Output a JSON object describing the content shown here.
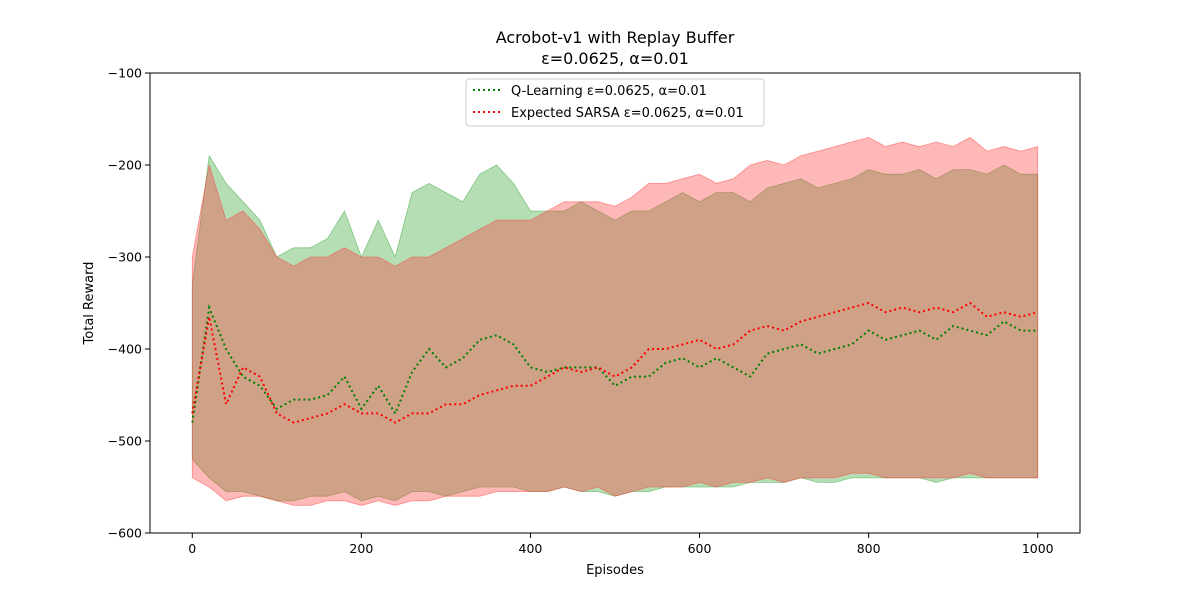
{
  "chart_data": {
    "type": "line",
    "title": "Acrobot-v1 with Replay Buffer",
    "subtitle": "ε=0.0625, α=0.01",
    "xlabel": "Episodes",
    "ylabel": "Total Reward",
    "xlim": [
      -50,
      1050
    ],
    "ylim": [
      -600,
      -100
    ],
    "xticks": [
      0,
      200,
      400,
      600,
      800,
      1000
    ],
    "yticks": [
      -600,
      -500,
      -400,
      -300,
      -200,
      -100
    ],
    "xtick_labels": [
      "0",
      "200",
      "400",
      "600",
      "800",
      "1000"
    ],
    "ytick_labels": [
      "−600",
      "−500",
      "−400",
      "−300",
      "−200",
      "−100"
    ],
    "grid": false,
    "legend_position": "top-center",
    "series": [
      {
        "name": "Q-Learning ε=0.0625, α=0.01",
        "color": "#008000",
        "fill_color": "#2ca02c",
        "line_style": "dotted",
        "x": [
          0,
          20,
          40,
          60,
          80,
          100,
          120,
          140,
          160,
          180,
          200,
          220,
          240,
          260,
          280,
          300,
          320,
          340,
          360,
          380,
          400,
          420,
          440,
          460,
          480,
          500,
          520,
          540,
          560,
          580,
          600,
          620,
          640,
          660,
          680,
          700,
          720,
          740,
          760,
          780,
          800,
          820,
          840,
          860,
          880,
          900,
          920,
          940,
          960,
          980,
          1000
        ],
        "mean": [
          -480,
          -355,
          -400,
          -430,
          -440,
          -465,
          -455,
          -455,
          -450,
          -430,
          -465,
          -440,
          -470,
          -425,
          -400,
          -420,
          -410,
          -390,
          -385,
          -395,
          -420,
          -425,
          -420,
          -420,
          -420,
          -440,
          -430,
          -430,
          -415,
          -410,
          -420,
          -410,
          -420,
          -430,
          -405,
          -400,
          -395,
          -405,
          -400,
          -395,
          -380,
          -390,
          -385,
          -380,
          -390,
          -375,
          -380,
          -385,
          -370,
          -380,
          -380
        ],
        "upper": [
          -330,
          -190,
          -220,
          -240,
          -260,
          -300,
          -290,
          -290,
          -280,
          -250,
          -300,
          -260,
          -300,
          -230,
          -220,
          -230,
          -240,
          -210,
          -200,
          -220,
          -250,
          -250,
          -250,
          -240,
          -250,
          -260,
          -250,
          -250,
          -240,
          -230,
          -240,
          -230,
          -230,
          -240,
          -225,
          -220,
          -215,
          -225,
          -220,
          -215,
          -205,
          -210,
          -210,
          -205,
          -215,
          -205,
          -205,
          -210,
          -200,
          -210,
          -210
        ],
        "lower": [
          -520,
          -540,
          -555,
          -555,
          -560,
          -565,
          -565,
          -560,
          -560,
          -555,
          -565,
          -560,
          -565,
          -555,
          -555,
          -560,
          -555,
          -550,
          -550,
          -550,
          -555,
          -555,
          -550,
          -555,
          -555,
          -560,
          -555,
          -555,
          -550,
          -550,
          -550,
          -550,
          -550,
          -545,
          -545,
          -545,
          -540,
          -545,
          -545,
          -540,
          -540,
          -540,
          -540,
          -540,
          -545,
          -540,
          -540,
          -540,
          -540,
          -540,
          -540
        ]
      },
      {
        "name": "Expected SARSA ε=0.0625, α=0.01",
        "color": "#ff0000",
        "fill_color": "#ff3333",
        "line_style": "dotted",
        "x": [
          0,
          20,
          40,
          60,
          80,
          100,
          120,
          140,
          160,
          180,
          200,
          220,
          240,
          260,
          280,
          300,
          320,
          340,
          360,
          380,
          400,
          420,
          440,
          460,
          480,
          500,
          520,
          540,
          560,
          580,
          600,
          620,
          640,
          660,
          680,
          700,
          720,
          740,
          760,
          780,
          800,
          820,
          840,
          860,
          880,
          900,
          920,
          940,
          960,
          980,
          1000
        ],
        "mean": [
          -470,
          -365,
          -460,
          -420,
          -430,
          -470,
          -480,
          -475,
          -470,
          -460,
          -470,
          -470,
          -480,
          -470,
          -470,
          -460,
          -460,
          -450,
          -445,
          -440,
          -440,
          -430,
          -420,
          -425,
          -420,
          -430,
          -420,
          -400,
          -400,
          -395,
          -390,
          -400,
          -395,
          -380,
          -375,
          -380,
          -370,
          -365,
          -360,
          -355,
          -350,
          -360,
          -355,
          -360,
          -355,
          -360,
          -350,
          -365,
          -360,
          -365,
          -360
        ],
        "upper": [
          -300,
          -200,
          -260,
          -250,
          -270,
          -300,
          -310,
          -300,
          -300,
          -290,
          -300,
          -300,
          -310,
          -300,
          -300,
          -290,
          -280,
          -270,
          -260,
          -260,
          -260,
          -250,
          -240,
          -240,
          -240,
          -245,
          -235,
          -220,
          -220,
          -215,
          -210,
          -220,
          -215,
          -200,
          -195,
          -200,
          -190,
          -185,
          -180,
          -175,
          -170,
          -180,
          -175,
          -180,
          -175,
          -180,
          -170,
          -185,
          -180,
          -185,
          -180
        ],
        "lower": [
          -540,
          -550,
          -565,
          -560,
          -560,
          -565,
          -570,
          -570,
          -565,
          -565,
          -570,
          -565,
          -570,
          -565,
          -565,
          -560,
          -560,
          -560,
          -555,
          -555,
          -555,
          -555,
          -550,
          -555,
          -550,
          -560,
          -555,
          -550,
          -550,
          -550,
          -545,
          -550,
          -545,
          -545,
          -540,
          -545,
          -540,
          -540,
          -540,
          -535,
          -535,
          -540,
          -540,
          -540,
          -540,
          -540,
          -535,
          -540,
          -540,
          -540,
          -540
        ]
      }
    ]
  }
}
